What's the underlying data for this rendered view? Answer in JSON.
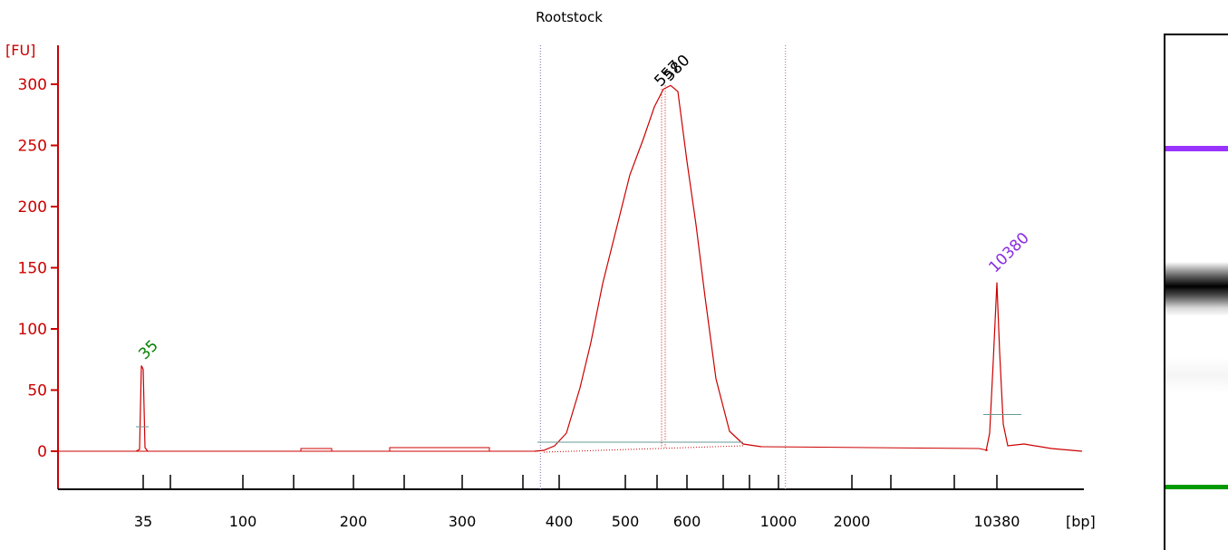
{
  "chart_data": {
    "type": "line",
    "title": "Rootstock",
    "ylabel": "[FU]",
    "xlabel": "[bp]",
    "y_ticks": [
      0,
      50,
      100,
      150,
      200,
      250,
      300
    ],
    "ylim": [
      -30,
      330
    ],
    "x_tick_labels": [
      "35",
      "100",
      "200",
      "300",
      "400",
      "500",
      "600",
      "1000",
      "2000",
      "10380"
    ],
    "x_axis_scale": "nonlinear (ladder-calibrated)",
    "grid": false,
    "peak_labels": [
      {
        "label": "35",
        "color": "#008000",
        "height_fu": 70
      },
      {
        "label": "557",
        "color": "#000000",
        "height_fu": 296
      },
      {
        "label": "580",
        "color": "#000000",
        "height_fu": 299
      },
      {
        "label": "10380",
        "color": "#8a2be2",
        "height_fu": 138
      }
    ],
    "region": {
      "from_bp": 390,
      "to_bp": 880
    },
    "series": [
      {
        "color": "#cc0000",
        "points": [
          [
            "35",
            0
          ],
          [
            "35",
            70
          ],
          [
            "100",
            0
          ],
          [
            "200",
            1
          ],
          [
            "300",
            2
          ],
          [
            "380",
            2
          ],
          [
            "400",
            10
          ],
          [
            "450",
            100
          ],
          [
            "500",
            200
          ],
          [
            "540",
            260
          ],
          [
            "557",
            296
          ],
          [
            "580",
            299
          ],
          [
            "620",
            180
          ],
          [
            "700",
            40
          ],
          [
            "900",
            5
          ],
          [
            "2000",
            3
          ],
          [
            "10380",
            138
          ],
          [
            "10900",
            3
          ]
        ]
      }
    ]
  },
  "gel": {
    "upper_marker_color": "#9933ff",
    "lower_marker_color": "#009900",
    "sample_band_color": "#000000"
  }
}
